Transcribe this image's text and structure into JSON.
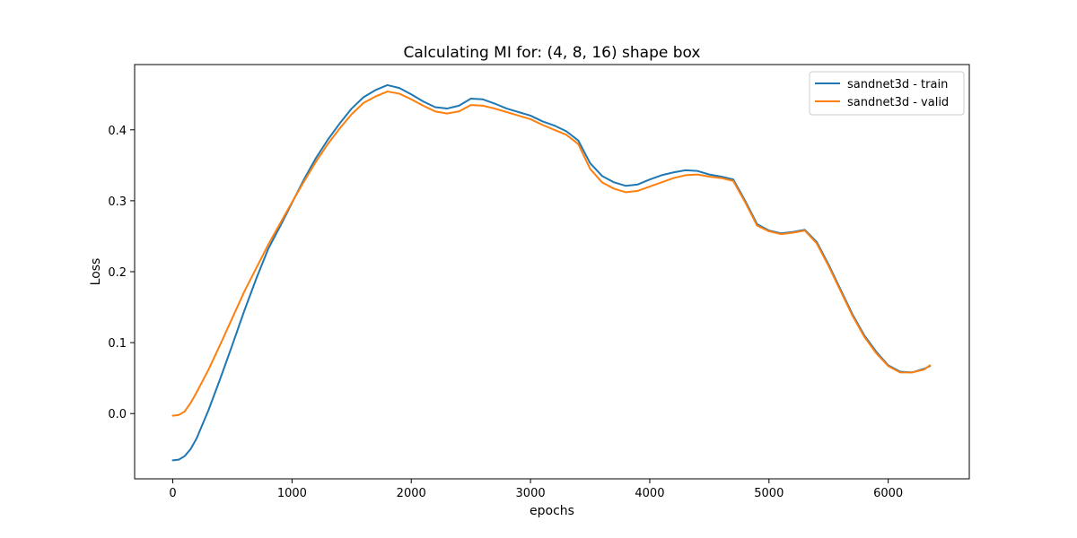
{
  "chart_data": {
    "type": "line",
    "title": "Calculating MI for: (4, 8, 16) shape box",
    "xlabel": "epochs",
    "ylabel": "Loss",
    "xlim": [
      -320,
      6680
    ],
    "ylim": [
      -0.092,
      0.492
    ],
    "xticks": [
      0,
      1000,
      2000,
      3000,
      4000,
      5000,
      6000
    ],
    "yticks": [
      0.0,
      0.1,
      0.2,
      0.3,
      0.4
    ],
    "xtick_labels": [
      "0",
      "1000",
      "2000",
      "3000",
      "4000",
      "5000",
      "6000"
    ],
    "ytick_labels": [
      "0.0",
      "0.1",
      "0.2",
      "0.3",
      "0.4"
    ],
    "grid": false,
    "legend_position": "top-right",
    "series": [
      {
        "name": "sandnet3d - train",
        "color": "#1f77b4",
        "x": [
          0,
          50,
          100,
          150,
          200,
          300,
          400,
          500,
          600,
          700,
          800,
          900,
          1000,
          1100,
          1200,
          1300,
          1400,
          1500,
          1600,
          1700,
          1800,
          1900,
          2000,
          2100,
          2200,
          2300,
          2400,
          2500,
          2600,
          2700,
          2800,
          2900,
          3000,
          3100,
          3200,
          3300,
          3400,
          3500,
          3600,
          3700,
          3800,
          3900,
          4000,
          4100,
          4200,
          4300,
          4400,
          4500,
          4600,
          4700,
          4800,
          4900,
          5000,
          5100,
          5200,
          5300,
          5400,
          5500,
          5600,
          5700,
          5800,
          5900,
          6000,
          6100,
          6200,
          6300,
          6350
        ],
        "y": [
          -0.066,
          -0.065,
          -0.06,
          -0.05,
          -0.035,
          0.005,
          0.05,
          0.097,
          0.145,
          0.19,
          0.232,
          0.264,
          0.297,
          0.33,
          0.36,
          0.386,
          0.409,
          0.43,
          0.446,
          0.456,
          0.463,
          0.459,
          0.45,
          0.44,
          0.432,
          0.43,
          0.434,
          0.444,
          0.443,
          0.437,
          0.43,
          0.425,
          0.42,
          0.412,
          0.406,
          0.398,
          0.385,
          0.353,
          0.335,
          0.326,
          0.321,
          0.323,
          0.33,
          0.336,
          0.34,
          0.343,
          0.342,
          0.337,
          0.334,
          0.33,
          0.3,
          0.267,
          0.258,
          0.254,
          0.256,
          0.259,
          0.242,
          0.21,
          0.175,
          0.14,
          0.11,
          0.087,
          0.068,
          0.059,
          0.058,
          0.063,
          0.067
        ]
      },
      {
        "name": "sandnet3d - valid",
        "color": "#ff7f0e",
        "x": [
          0,
          50,
          100,
          150,
          200,
          300,
          400,
          500,
          600,
          700,
          800,
          900,
          1000,
          1100,
          1200,
          1300,
          1400,
          1500,
          1600,
          1700,
          1800,
          1900,
          2000,
          2100,
          2200,
          2300,
          2400,
          2500,
          2600,
          2700,
          2800,
          2900,
          3000,
          3100,
          3200,
          3300,
          3400,
          3500,
          3600,
          3700,
          3800,
          3900,
          4000,
          4100,
          4200,
          4300,
          4400,
          4500,
          4600,
          4700,
          4800,
          4900,
          5000,
          5100,
          5200,
          5300,
          5400,
          5500,
          5600,
          5700,
          5800,
          5900,
          6000,
          6100,
          6200,
          6300,
          6350
        ],
        "y": [
          -0.003,
          -0.002,
          0.003,
          0.015,
          0.03,
          0.062,
          0.098,
          0.135,
          0.172,
          0.205,
          0.238,
          0.268,
          0.298,
          0.327,
          0.355,
          0.38,
          0.402,
          0.422,
          0.438,
          0.447,
          0.454,
          0.451,
          0.443,
          0.434,
          0.426,
          0.423,
          0.426,
          0.435,
          0.434,
          0.43,
          0.425,
          0.42,
          0.415,
          0.407,
          0.4,
          0.393,
          0.38,
          0.345,
          0.326,
          0.317,
          0.312,
          0.314,
          0.32,
          0.326,
          0.332,
          0.336,
          0.337,
          0.334,
          0.332,
          0.328,
          0.298,
          0.265,
          0.257,
          0.253,
          0.255,
          0.258,
          0.24,
          0.208,
          0.173,
          0.138,
          0.108,
          0.085,
          0.067,
          0.058,
          0.058,
          0.062,
          0.068
        ]
      }
    ]
  }
}
